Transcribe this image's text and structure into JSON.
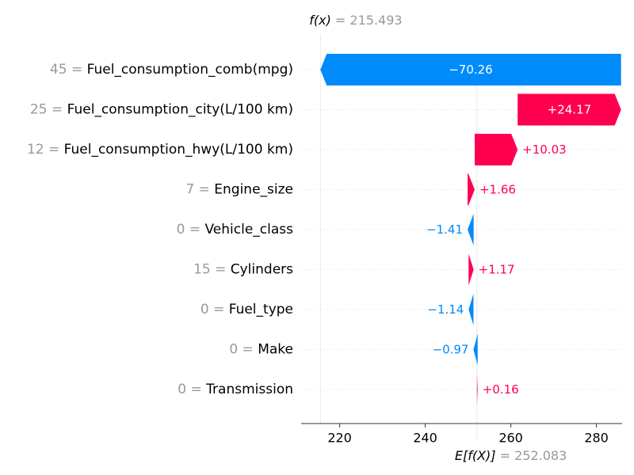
{
  "chart_data": {
    "type": "waterfall",
    "fx": {
      "label": "f(x)",
      "equals": "=",
      "value": "215.493",
      "x": 215.493
    },
    "base": {
      "label": "E[f(X)]",
      "equals": "=",
      "value": "252.083",
      "x": 252.083
    },
    "xlim": [
      211,
      286
    ],
    "xticks": [
      {
        "x": 220,
        "label": "220"
      },
      {
        "x": 240,
        "label": "240"
      },
      {
        "x": 260,
        "label": "260"
      },
      {
        "x": 280,
        "label": "280"
      }
    ],
    "features": [
      {
        "value_text": "45",
        "name": "Fuel_consumption_comb(mpg)",
        "contribution": -70.26,
        "label": "−70.26"
      },
      {
        "value_text": "25",
        "name": "Fuel_consumption_city(L/100 km)",
        "contribution": 24.17,
        "label": "+24.17"
      },
      {
        "value_text": "12",
        "name": "Fuel_consumption_hwy(L/100 km)",
        "contribution": 10.03,
        "label": "+10.03"
      },
      {
        "value_text": "7",
        "name": "Engine_size",
        "contribution": 1.66,
        "label": "+1.66"
      },
      {
        "value_text": "0",
        "name": "Vehicle_class",
        "contribution": -1.41,
        "label": "−1.41"
      },
      {
        "value_text": "15",
        "name": "Cylinders",
        "contribution": 1.17,
        "label": "+1.17"
      },
      {
        "value_text": "0",
        "name": "Fuel_type",
        "contribution": -1.14,
        "label": "−1.14"
      },
      {
        "value_text": "0",
        "name": "Make",
        "contribution": -0.97,
        "label": "−0.97"
      },
      {
        "value_text": "0",
        "name": "Transmission",
        "contribution": 0.16,
        "label": "+0.16"
      }
    ],
    "colors": {
      "positive": "#ff0051",
      "negative": "#008bfb",
      "gray": "#999999",
      "grid": "#e0e0e0"
    },
    "grid": true
  }
}
